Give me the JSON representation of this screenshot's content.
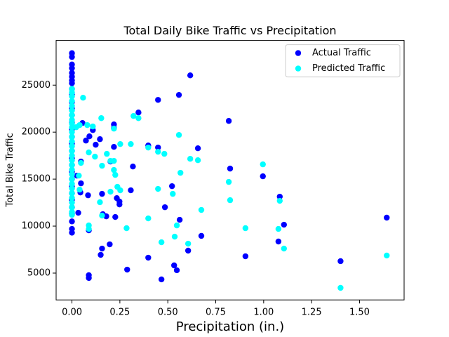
{
  "chart_data": {
    "type": "scatter",
    "title": "Total Daily Bike Traffic vs Precipitation",
    "xlabel": "Precipitation (in.)",
    "ylabel": "Total Bike Traffic",
    "xlim": [
      -0.0825,
      1.7325
    ],
    "ylim": [
      2145,
      29755
    ],
    "xticks": [
      {
        "value": 0,
        "label": "0.00"
      },
      {
        "value": 0.25,
        "label": "0.25"
      },
      {
        "value": 0.5,
        "label": "0.50"
      },
      {
        "value": 0.75,
        "label": "0.75"
      },
      {
        "value": 1,
        "label": "1.00"
      },
      {
        "value": 1.25,
        "label": "1.25"
      },
      {
        "value": 1.5,
        "label": "1.50"
      }
    ],
    "yticks": [
      5000,
      10000,
      15000,
      20000,
      25000
    ],
    "legend": "upper right",
    "grid": false,
    "series": [
      {
        "name": "Actual Traffic",
        "color": "#0000ff",
        "x": [
          0,
          0,
          0,
          0,
          0,
          0,
          0,
          0,
          0,
          0,
          0,
          0,
          0,
          0,
          0,
          0,
          0,
          0,
          0,
          0,
          0,
          0,
          0,
          0,
          0,
          0,
          0,
          0,
          0,
          0,
          0.617,
          0.558,
          0.449,
          0.347,
          0.818,
          0.219,
          0.219,
          0.109,
          0.055,
          0.091,
          0.073,
          0.146,
          0.124,
          0.398,
          0.449,
          0.657,
          0.219,
          0.318,
          0.825,
          0.996,
          0.201,
          0.047,
          0.026,
          0.522,
          0.047,
          0.307,
          1.084,
          0.157,
          0.084,
          0.044,
          0.234,
          0.248,
          0.248,
          0.485,
          0.033,
          0.161,
          0.179,
          0.226,
          0.562,
          1.642,
          1.106,
          0.088,
          0.675,
          1.077,
          0.197,
          0.157,
          0.606,
          0.15,
          0.398,
          0.905,
          1.401,
          0.533,
          0.547,
          0.288,
          0.088,
          0.088,
          0.467
        ],
        "y": [
          28400,
          28000,
          27200,
          26800,
          26300,
          25900,
          25500,
          25200,
          24600,
          24000,
          23200,
          22500,
          21800,
          21000,
          20300,
          19500,
          18800,
          18000,
          17200,
          16500,
          15800,
          15000,
          14200,
          13500,
          12800,
          12000,
          11300,
          10500,
          9700,
          9300,
          26040,
          23960,
          23430,
          22090,
          21190,
          20820,
          20450,
          20220,
          20970,
          19550,
          19100,
          19250,
          18660,
          18580,
          18360,
          18280,
          18430,
          16340,
          16120,
          15300,
          16870,
          16870,
          15370,
          14250,
          14550,
          13810,
          13130,
          13430,
          13280,
          13580,
          12980,
          12610,
          12310,
          12010,
          11420,
          11270,
          11040,
          10970,
          10670,
          10900,
          10150,
          9550,
          8960,
          8360,
          8060,
          7610,
          7390,
          6940,
          6640,
          6790,
          6270,
          5820,
          5300,
          5370,
          4780,
          4480,
          4330
        ]
      },
      {
        "name": "Predicted Traffic",
        "color": "#00ffff",
        "x": [
          0,
          0,
          0,
          0,
          0,
          0,
          0,
          0,
          0,
          0,
          0,
          0,
          0,
          0,
          0,
          0,
          0,
          0,
          0,
          0,
          0,
          0,
          0,
          0,
          0,
          0,
          0,
          0,
          0,
          0.058,
          0.153,
          0.321,
          0.347,
          0.04,
          0.08,
          0.109,
          0.022,
          0.219,
          0.252,
          0.307,
          0.398,
          0.558,
          0.449,
          0.482,
          0.617,
          0.657,
          0.088,
          0.182,
          0.201,
          0.219,
          0.12,
          0.996,
          0.047,
          0.157,
          0.219,
          0.566,
          0.226,
          0.036,
          0.818,
          0.237,
          0.04,
          0.252,
          0.449,
          0.201,
          0.526,
          0.825,
          1.084,
          0.146,
          0.675,
          0.157,
          0.398,
          0.547,
          0.088,
          0.088,
          0.285,
          0.905,
          1.077,
          0.536,
          0.467,
          0.606,
          1.106,
          1.642,
          1.401
        ],
        "y": [
          24600,
          24200,
          23800,
          23300,
          22800,
          22300,
          21800,
          21300,
          20900,
          20500,
          20000,
          19500,
          19000,
          18500,
          18000,
          17500,
          17000,
          16500,
          16000,
          15500,
          15000,
          14500,
          14000,
          13500,
          13000,
          12500,
          12000,
          11500,
          11200,
          23660,
          21490,
          21720,
          21490,
          20750,
          20750,
          20600,
          20520,
          20370,
          18730,
          18730,
          18360,
          19700,
          17910,
          17690,
          17160,
          17010,
          17840,
          17690,
          16940,
          16940,
          17390,
          16570,
          16720,
          16420,
          15970,
          15670,
          15450,
          15370,
          14700,
          14180,
          13880,
          13810,
          13960,
          13660,
          13430,
          12760,
          12690,
          12540,
          11720,
          11120,
          10820,
          10070,
          10070,
          9700,
          9780,
          9780,
          9700,
          8880,
          8280,
          8130,
          7610,
          6870,
          3430
        ]
      }
    ]
  }
}
